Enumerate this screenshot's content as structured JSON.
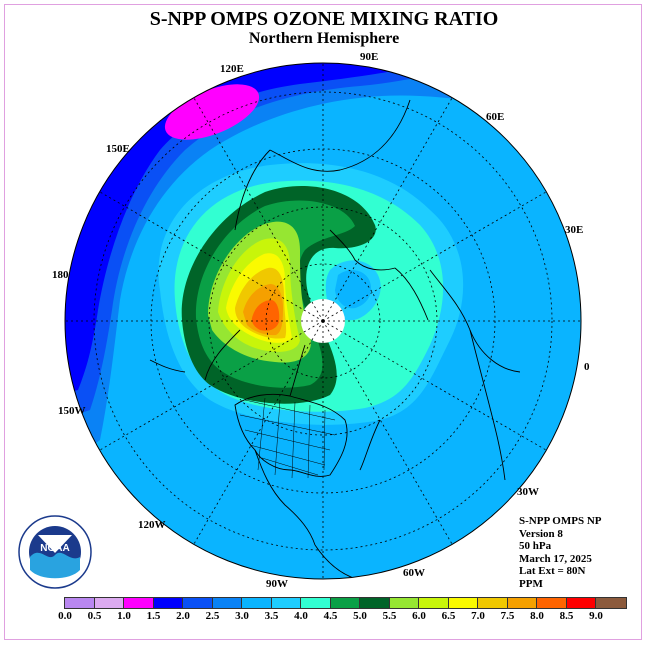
{
  "header": {
    "title": "S-NPP OMPS OZONE MIXING RATIO",
    "subtitle": "Northern Hemisphere"
  },
  "map": {
    "longitude_labels": [
      "90E",
      "60E",
      "30E",
      "0",
      "30W",
      "60W",
      "90W",
      "120W",
      "150W",
      "180",
      "150E",
      "120E"
    ]
  },
  "info": {
    "lines": [
      "S-NPP OMPS NP",
      "Version 8",
      "50 hPa",
      "March 17, 2025",
      "Lat Ext = 80N",
      "PPM"
    ]
  },
  "logo": {
    "name": "NOAA",
    "ring_text": "NATIONAL OCEANIC AND ATMOSPHERIC ADMINISTRATION · U.S. DEPARTMENT OF COMMERCE"
  },
  "colorbar": {
    "colors": [
      "#b987f0",
      "#dcaaf0",
      "#ff00ff",
      "#0000ff",
      "#0a50f5",
      "#0a82f5",
      "#0ab4ff",
      "#1ecdff",
      "#32ffd2",
      "#0aa046",
      "#006428",
      "#96e632",
      "#c8f50a",
      "#fafa00",
      "#f0c800",
      "#f5a000",
      "#ff6400",
      "#ff0000",
      "#8c5a3c"
    ],
    "ticks": [
      "0.0",
      "0.5",
      "1.0",
      "1.5",
      "2.0",
      "2.5",
      "3.0",
      "3.5",
      "4.0",
      "4.5",
      "5.0",
      "5.5",
      "6.0",
      "6.5",
      "7.0",
      "7.5",
      "8.0",
      "8.5",
      "9.0"
    ]
  }
}
